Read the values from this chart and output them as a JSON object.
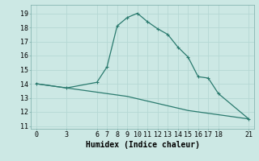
{
  "line1_x": [
    0,
    3,
    6,
    7,
    8,
    9,
    10,
    11,
    12,
    13,
    14,
    15,
    16,
    17,
    18,
    21
  ],
  "line1_y": [
    14.0,
    13.7,
    14.1,
    15.2,
    18.1,
    18.7,
    19.0,
    18.4,
    17.9,
    17.5,
    16.6,
    15.9,
    14.5,
    14.4,
    13.3,
    11.5
  ],
  "line2_x": [
    0,
    3,
    6,
    9,
    12,
    15,
    18,
    21
  ],
  "line2_y": [
    14.0,
    13.7,
    13.4,
    13.1,
    12.6,
    12.1,
    11.8,
    11.5
  ],
  "color": "#2a7a6e",
  "bg_color": "#cce8e4",
  "grid_color": "#b5d8d4",
  "xlabel": "Humidex (Indice chaleur)",
  "xlim": [
    -0.5,
    21.5
  ],
  "ylim": [
    10.8,
    19.6
  ],
  "xticks": [
    0,
    3,
    6,
    7,
    8,
    9,
    10,
    11,
    12,
    13,
    14,
    15,
    16,
    17,
    18,
    21
  ],
  "yticks": [
    11,
    12,
    13,
    14,
    15,
    16,
    17,
    18,
    19
  ],
  "xlabel_fontsize": 7,
  "tick_fontsize": 6,
  "marker_size": 2.5
}
